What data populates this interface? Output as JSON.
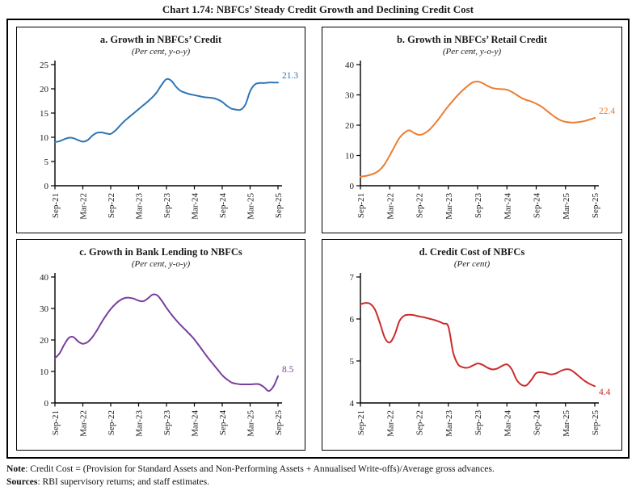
{
  "page": {
    "title": "Chart 1.74: NBFCs’ Steady Credit Growth and Declining Credit Cost",
    "note_label": "Note",
    "note_rest": ": Credit Cost = (Provision for Standard Assets and Non-Performing Assets + Annualised Write-offs)/Average gross advances.",
    "sources_label": "Sources",
    "sources_rest": ": RBI supervisory returns; and staff estimates."
  },
  "chart_data": [
    {
      "type": "line",
      "panel": "a",
      "title": "a. Growth in NBFCs’ Credit",
      "subtitle": "(Per cent, y-o-y)",
      "color": "#2E75B6",
      "ylim": [
        0,
        25
      ],
      "yticks": [
        0,
        5,
        10,
        15,
        20,
        25
      ],
      "xtick_labels": [
        "Sep-21",
        "Mar-22",
        "Sep-22",
        "Mar-23",
        "Sep-23",
        "Mar-24",
        "Sep-24",
        "Mar-25",
        "Sep-25"
      ],
      "x_frequency": "monthly",
      "x_start": "Sep-21",
      "x_end": "Sep-25",
      "grid": false,
      "legend_position": "none",
      "end_label": "21.3",
      "values": [
        9.0,
        9.2,
        9.6,
        9.9,
        9.8,
        9.4,
        9.1,
        9.4,
        10.3,
        10.9,
        11.0,
        10.8,
        10.7,
        11.4,
        12.4,
        13.4,
        14.2,
        15.0,
        15.8,
        16.6,
        17.4,
        18.3,
        19.4,
        20.9,
        22.0,
        21.7,
        20.5,
        19.6,
        19.2,
        18.9,
        18.7,
        18.5,
        18.3,
        18.2,
        18.1,
        17.8,
        17.3,
        16.5,
        15.9,
        15.7,
        15.7,
        16.8,
        19.5,
        20.9,
        21.2,
        21.2,
        21.3,
        21.3,
        21.3
      ]
    },
    {
      "type": "line",
      "panel": "b",
      "title": "b. Growth in NBFCs’ Retail Credit",
      "subtitle": "(Per cent, y-o-y)",
      "color": "#ED7D31",
      "ylim": [
        0,
        40
      ],
      "yticks": [
        0,
        10,
        20,
        30,
        40
      ],
      "xtick_labels": [
        "Sep-21",
        "Mar-22",
        "Sep-22",
        "Mar-23",
        "Sep-23",
        "Mar-24",
        "Sep-24",
        "Mar-25",
        "Sep-25"
      ],
      "x_frequency": "monthly",
      "x_start": "Sep-21",
      "x_end": "Sep-25",
      "grid": false,
      "legend_position": "none",
      "end_label": "22.4",
      "values": [
        3.0,
        3.2,
        3.6,
        4.2,
        5.3,
        7.2,
        10.0,
        13.0,
        15.8,
        17.5,
        18.3,
        17.4,
        16.8,
        17.2,
        18.3,
        20.0,
        22.0,
        24.2,
        26.3,
        28.2,
        30.0,
        31.6,
        33.0,
        34.1,
        34.4,
        33.9,
        33.0,
        32.3,
        32.0,
        31.9,
        31.7,
        31.0,
        30.0,
        29.0,
        28.3,
        27.8,
        27.1,
        26.2,
        25.0,
        23.7,
        22.5,
        21.6,
        21.1,
        20.9,
        20.9,
        21.1,
        21.4,
        21.9,
        22.4
      ]
    },
    {
      "type": "line",
      "panel": "c",
      "title": "c. Growth in Bank Lending to NBFCs",
      "subtitle": "(Per cent, y-o-y)",
      "color": "#7A3F9D",
      "ylim": [
        0,
        40
      ],
      "yticks": [
        0,
        10,
        20,
        30,
        40
      ],
      "xtick_labels": [
        "Sep-21",
        "Mar-22",
        "Sep-22",
        "Mar-23",
        "Sep-23",
        "Mar-24",
        "Sep-24",
        "Mar-25",
        "Sep-25"
      ],
      "x_frequency": "monthly",
      "x_start": "Sep-21",
      "x_end": "Sep-25",
      "grid": false,
      "legend_position": "none",
      "end_label": "8.5",
      "values": [
        14.2,
        15.8,
        18.5,
        20.7,
        20.9,
        19.5,
        18.8,
        19.3,
        20.8,
        23.0,
        25.5,
        27.8,
        29.8,
        31.4,
        32.6,
        33.3,
        33.4,
        33.1,
        32.5,
        32.3,
        33.2,
        34.4,
        34.2,
        32.4,
        30.2,
        28.2,
        26.4,
        24.8,
        23.3,
        21.8,
        20.2,
        18.2,
        16.2,
        14.2,
        12.4,
        10.6,
        8.8,
        7.5,
        6.5,
        6.1,
        5.9,
        5.9,
        5.9,
        6.0,
        5.9,
        5.0,
        3.8,
        5.2,
        8.5
      ]
    },
    {
      "type": "line",
      "panel": "d",
      "title": "d. Credit Cost of NBFCs",
      "subtitle": "(Per cent)",
      "color": "#CB2B2B",
      "ylim": [
        4,
        7
      ],
      "yticks": [
        4,
        5,
        6,
        7
      ],
      "xtick_labels": [
        "Sep-21",
        "Mar-22",
        "Sep-22",
        "Mar-23",
        "Sep-23",
        "Mar-24",
        "Sep-24",
        "Mar-25",
        "Sep-25"
      ],
      "x_frequency": "monthly",
      "x_start": "Sep-21",
      "x_end": "Sep-25",
      "grid": false,
      "legend_position": "none",
      "end_label": "4.4",
      "values": [
        6.35,
        6.38,
        6.36,
        6.22,
        5.9,
        5.55,
        5.44,
        5.62,
        5.95,
        6.08,
        6.1,
        6.09,
        6.06,
        6.04,
        6.01,
        5.98,
        5.94,
        5.89,
        5.82,
        5.2,
        4.92,
        4.85,
        4.84,
        4.89,
        4.94,
        4.91,
        4.84,
        4.8,
        4.82,
        4.88,
        4.92,
        4.8,
        4.55,
        4.43,
        4.42,
        4.55,
        4.71,
        4.73,
        4.71,
        4.68,
        4.7,
        4.76,
        4.8,
        4.79,
        4.71,
        4.61,
        4.52,
        4.45,
        4.4
      ]
    }
  ]
}
